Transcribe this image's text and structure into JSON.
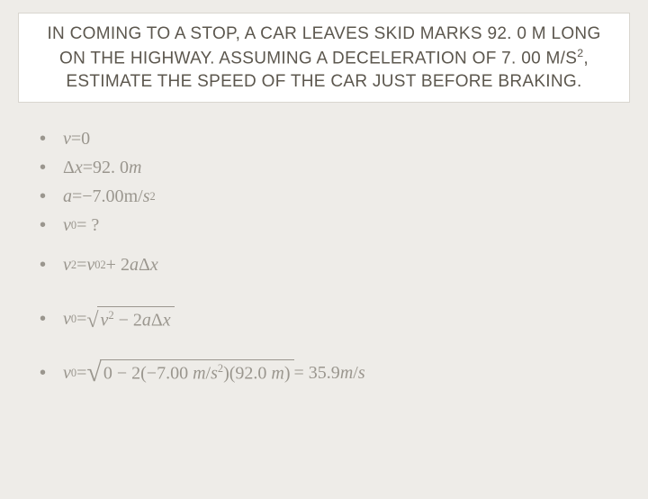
{
  "colors": {
    "background": "#eeece8",
    "title_box_bg": "#ffffff",
    "title_box_border": "#d9d6d0",
    "title_text": "#5c574e",
    "body_text": "#9a968e",
    "sqrt_bar": "#9a968e"
  },
  "title": {
    "line1_a": "IN COMING TO A STOP, A CAR LEAVES SKID MARKS 92. 0 M LONG",
    "line2_a": "ON THE HIGHWAY. ASSUMING A DECELERATION OF 7. 00 M/S",
    "line2_sup": "2",
    "line2_b": ",",
    "line3_a": "ESTIMATE THE SPEED OF THE CAR JUST BEFORE BRAKING.",
    "fontsize": 19
  },
  "math": {
    "fontfamily": "Cambria Math",
    "fontsize": 20
  },
  "lines": {
    "l1": {
      "v": "v",
      "eq": " = ",
      "zero": "0"
    },
    "l2": {
      "dx_a": "Δ",
      "dx_b": "x",
      "eq": " = ",
      "val": "92. 0 ",
      "unit": "m"
    },
    "l3": {
      "a": "a",
      "eq": " = ",
      "val": "−7.00 ",
      "unit_a": "m",
      "slash": "/",
      "unit_b": "s",
      "sup": "2"
    },
    "l4": {
      "v": "v",
      "sub": "0",
      "eq": " = ? "
    },
    "l5": {
      "v": "v",
      "sup1": "2",
      "eq": " = ",
      "v0": "v",
      "sub0": "0",
      "sup2": "2",
      "plus": " + 2",
      "a": "a",
      "dx_a": "Δ",
      "dx_b": "x"
    },
    "l6": {
      "v0": "v",
      "sub": "0",
      "eq": " = ",
      "inside_a": "v",
      "inside_sup": "2",
      "inside_b": " − 2",
      "inside_c": "a",
      "inside_dxa": "Δ",
      "inside_dxb": "x"
    },
    "l7": {
      "v0": "v",
      "sub": "0",
      "eq": " = ",
      "inside_a": "0 − 2(−7.00 ",
      "inside_ua": "m",
      "inside_slash": "/",
      "inside_ub": "s",
      "inside_sup": "2",
      "inside_b": ")(92.0 ",
      "inside_uc": "m",
      "inside_c": ")",
      "res_eq": " = 35.9 ",
      "res_ua": "m",
      "res_slash": "/",
      "res_ub": "s"
    }
  }
}
